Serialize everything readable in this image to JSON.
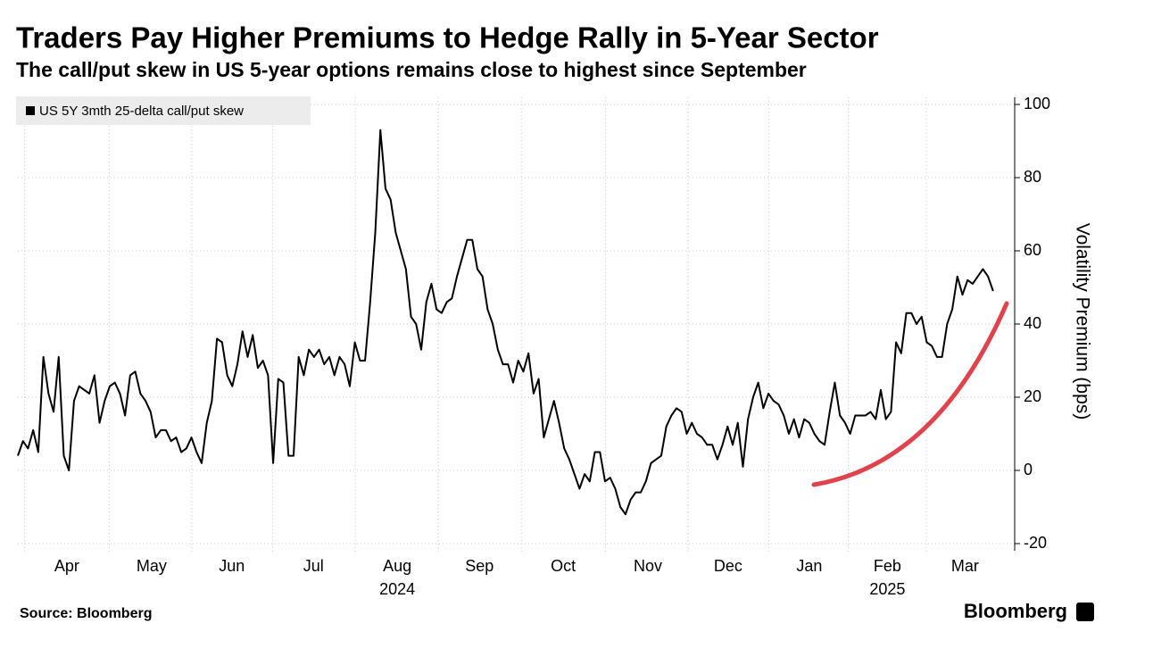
{
  "chart_data": {
    "type": "line",
    "title": "Traders Pay Higher Premiums to Hedge Rally in 5-Year Sector",
    "subtitle": "The call/put skew in US 5-year options remains close to highest since September",
    "y_axis_label": "Volatility Premium (bps)",
    "source": "Source: Bloomberg",
    "brand": "Bloomberg",
    "series": [
      {
        "name": "US 5Y 3mth 25-delta call/put skew",
        "color": "#000000",
        "values": [
          4,
          8,
          6,
          11,
          5,
          31,
          21,
          16,
          31,
          4,
          0,
          19,
          23,
          22,
          21,
          26,
          13,
          19,
          23,
          24,
          21,
          15,
          26,
          27,
          21,
          19,
          16,
          9,
          11,
          11,
          8,
          9,
          5,
          6,
          9,
          5,
          2,
          13,
          19,
          36,
          35,
          26,
          23,
          29,
          38,
          31,
          37,
          28,
          30,
          26,
          2,
          25,
          24,
          4,
          4,
          31,
          26,
          33,
          31,
          33,
          29,
          31,
          26,
          31,
          29,
          23,
          35,
          30,
          30,
          46,
          65,
          93,
          77,
          74,
          65,
          60,
          55,
          42,
          40,
          33,
          46,
          51,
          44,
          43,
          46,
          47,
          53,
          58,
          63,
          63,
          55,
          53,
          44,
          40,
          33,
          29,
          29,
          24,
          30,
          27,
          32,
          21,
          25,
          9,
          14,
          19,
          13,
          6,
          3,
          -1,
          -5,
          -1,
          -3,
          5,
          5,
          -3,
          -2,
          -5,
          -10,
          -12,
          -8,
          -6,
          -6,
          -3,
          2,
          3,
          4,
          12,
          15,
          17,
          16,
          10,
          13,
          10,
          9,
          7,
          7,
          3,
          7,
          12,
          7,
          13,
          1,
          14,
          20,
          24,
          17,
          21,
          19,
          18,
          15,
          10,
          14,
          9,
          14,
          13,
          10,
          8,
          7,
          16,
          24,
          15,
          13,
          10,
          15,
          15,
          15,
          16,
          14,
          22,
          14,
          16,
          35,
          32,
          43,
          43,
          40,
          42,
          35,
          34,
          31,
          31,
          40,
          44,
          53,
          48,
          52,
          51,
          53,
          55,
          53,
          49
        ]
      }
    ],
    "xlim": [
      0,
      194
    ],
    "xticks": [
      {
        "value": 9.6,
        "label": "Apr"
      },
      {
        "value": 26.2,
        "label": "May"
      },
      {
        "value": 41.9,
        "label": "Jun"
      },
      {
        "value": 57.9,
        "label": "Jul"
      },
      {
        "value": 74.3,
        "label": "Aug"
      },
      {
        "value": 90.4,
        "label": "Sep"
      },
      {
        "value": 106.8,
        "label": "Oct"
      },
      {
        "value": 123.4,
        "label": "Nov"
      },
      {
        "value": 139.1,
        "label": "Dec"
      },
      {
        "value": 155,
        "label": "Jan"
      },
      {
        "value": 170.3,
        "label": "Feb"
      },
      {
        "value": 185.5,
        "label": "Mar"
      }
    ],
    "year_ticks": [
      {
        "value": 74.3,
        "label": "2024"
      },
      {
        "value": 170.3,
        "label": "2025"
      }
    ],
    "ylim": [
      -20,
      100
    ],
    "yticks": [
      -20,
      0,
      20,
      40,
      60,
      80,
      100
    ],
    "grid": true
  }
}
